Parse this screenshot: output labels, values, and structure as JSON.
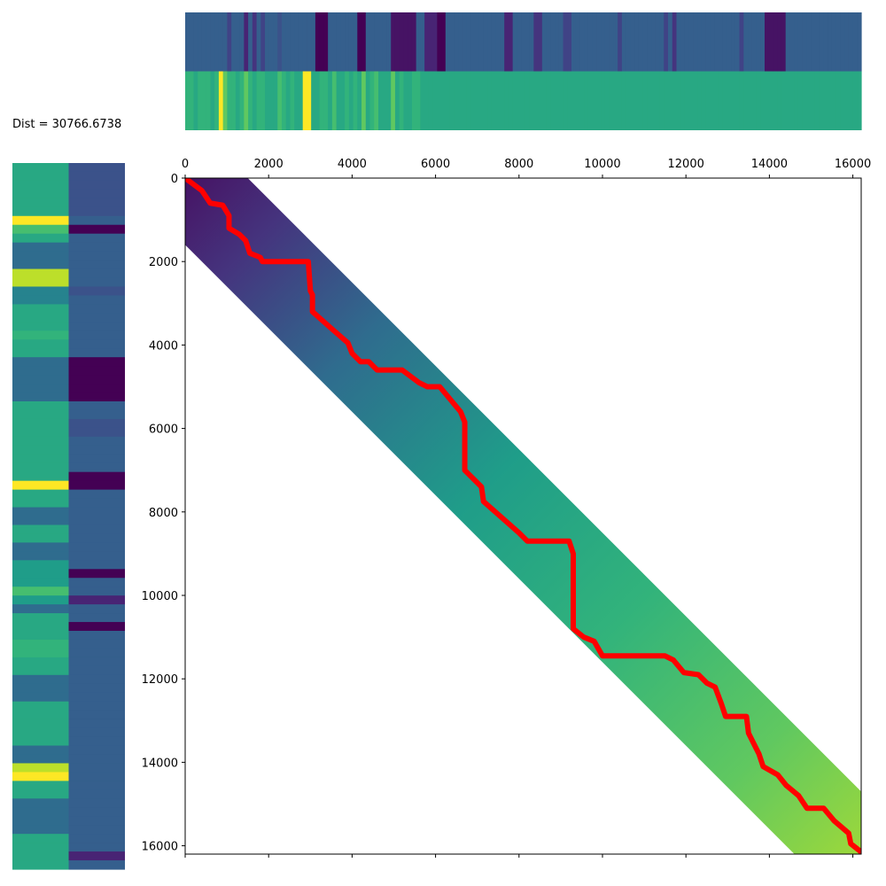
{
  "dist_label": "Dist = 30766.6738",
  "colors": {
    "path": "#ff0000",
    "cmap": [
      "#440154",
      "#482878",
      "#3e4a89",
      "#31688e",
      "#26828e",
      "#1f9e89",
      "#35b779",
      "#6ece58",
      "#b5de2b",
      "#fde725"
    ]
  },
  "chart_data": {
    "type": "heatmap",
    "title": "",
    "xlabel": "",
    "ylabel": "",
    "xlim": [
      0,
      16200
    ],
    "ylim": [
      16200,
      0
    ],
    "x_ticks": [
      0,
      2000,
      4000,
      6000,
      8000,
      10000,
      12000,
      14000,
      16000
    ],
    "y_ticks": [
      0,
      2000,
      4000,
      6000,
      8000,
      10000,
      12000,
      14000,
      16000
    ],
    "x_tick_labels": [
      "0",
      "2000",
      "4000",
      "6000",
      "8000",
      "10000",
      "12000",
      "14000",
      "16000"
    ],
    "y_tick_labels": [
      "0",
      "2000",
      "4000",
      "6000",
      "8000",
      "10000",
      "12000",
      "14000",
      "16000"
    ],
    "band": {
      "upper_offset": 1500,
      "lower_offset": 1600
    },
    "cost_gradient": [
      {
        "pos": 0.0,
        "value": 0.05
      },
      {
        "pos": 0.1,
        "value": 0.15
      },
      {
        "pos": 0.25,
        "value": 0.35
      },
      {
        "pos": 0.45,
        "value": 0.55
      },
      {
        "pos": 0.65,
        "value": 0.65
      },
      {
        "pos": 0.85,
        "value": 0.75
      },
      {
        "pos": 1.0,
        "value": 0.85
      }
    ],
    "warping_path": [
      [
        0,
        0
      ],
      [
        400,
        300
      ],
      [
        600,
        600
      ],
      [
        900,
        650
      ],
      [
        1050,
        900
      ],
      [
        1050,
        1200
      ],
      [
        1300,
        1350
      ],
      [
        1450,
        1500
      ],
      [
        1550,
        1800
      ],
      [
        1800,
        1900
      ],
      [
        1850,
        2000
      ],
      [
        2950,
        2000
      ],
      [
        3000,
        2700
      ],
      [
        3050,
        2800
      ],
      [
        3050,
        3200
      ],
      [
        3500,
        3600
      ],
      [
        3900,
        3950
      ],
      [
        4000,
        4200
      ],
      [
        4200,
        4400
      ],
      [
        4400,
        4400
      ],
      [
        4600,
        4600
      ],
      [
        5200,
        4600
      ],
      [
        5600,
        4900
      ],
      [
        5800,
        5000
      ],
      [
        6100,
        5000
      ],
      [
        6600,
        5600
      ],
      [
        6700,
        5850
      ],
      [
        6700,
        7000
      ],
      [
        7100,
        7400
      ],
      [
        7150,
        7750
      ],
      [
        8000,
        8500
      ],
      [
        8200,
        8700
      ],
      [
        9200,
        8700
      ],
      [
        9300,
        9000
      ],
      [
        9300,
        10800
      ],
      [
        9550,
        11000
      ],
      [
        9800,
        11100
      ],
      [
        10000,
        11450
      ],
      [
        11500,
        11450
      ],
      [
        11700,
        11550
      ],
      [
        11950,
        11850
      ],
      [
        12300,
        11900
      ],
      [
        12500,
        12100
      ],
      [
        12700,
        12200
      ],
      [
        12850,
        12600
      ],
      [
        12950,
        12900
      ],
      [
        13450,
        12900
      ],
      [
        13500,
        13300
      ],
      [
        13650,
        13600
      ],
      [
        13750,
        13800
      ],
      [
        13850,
        14100
      ],
      [
        14200,
        14300
      ],
      [
        14400,
        14550
      ],
      [
        14700,
        14800
      ],
      [
        14900,
        15100
      ],
      [
        15300,
        15100
      ],
      [
        15550,
        15400
      ],
      [
        15900,
        15700
      ],
      [
        15950,
        15950
      ],
      [
        16200,
        16150
      ]
    ],
    "top_sequences": [
      {
        "name": "",
        "values": [
          0.3,
          0.3,
          0.3,
          0.3,
          0.3,
          0.3,
          0.3,
          0.3,
          0.3,
          0.3,
          0.2,
          0.3,
          0.3,
          0.3,
          0.1,
          0.3,
          0.15,
          0.3,
          0.2,
          0.3,
          0.3,
          0.3,
          0.25,
          0.3,
          0.3,
          0.3,
          0.3,
          0.3,
          0.3,
          0.3,
          0.3,
          0.0,
          0.0,
          0.0,
          0.3,
          0.3,
          0.3,
          0.3,
          0.3,
          0.3,
          0.3,
          0.0,
          0.0,
          0.3,
          0.3,
          0.3,
          0.3,
          0.3,
          0.3,
          0.05,
          0.05,
          0.05,
          0.05,
          0.05,
          0.05,
          0.3,
          0.3,
          0.1,
          0.1,
          0.1,
          0.0,
          0.0,
          0.3,
          0.3,
          0.3,
          0.3,
          0.3,
          0.3,
          0.3,
          0.3,
          0.3,
          0.3,
          0.3,
          0.3,
          0.3,
          0.3,
          0.1,
          0.1,
          0.3,
          0.3,
          0.3,
          0.3,
          0.3,
          0.15,
          0.15,
          0.3,
          0.3,
          0.3,
          0.3,
          0.3,
          0.2,
          0.2,
          0.3,
          0.3,
          0.3,
          0.3,
          0.3,
          0.3,
          0.3,
          0.3,
          0.3,
          0.3,
          0.3,
          0.2,
          0.3,
          0.3,
          0.3,
          0.3,
          0.3,
          0.3,
          0.3,
          0.3,
          0.3,
          0.3,
          0.2,
          0.3,
          0.15,
          0.3,
          0.3,
          0.3,
          0.3,
          0.3,
          0.3,
          0.3,
          0.3,
          0.3,
          0.3,
          0.3,
          0.3,
          0.3,
          0.3,
          0.3,
          0.2,
          0.3,
          0.3,
          0.3,
          0.3,
          0.3,
          0.05,
          0.05,
          0.05,
          0.05,
          0.05,
          0.3,
          0.3,
          0.3,
          0.3,
          0.3,
          0.3,
          0.3,
          0.3,
          0.3,
          0.3,
          0.3,
          0.3,
          0.3,
          0.3,
          0.3,
          0.3,
          0.3,
          0.3
        ]
      },
      {
        "name": "",
        "values": [
          0.65,
          0.65,
          0.6,
          0.65,
          0.65,
          0.65,
          0.6,
          0.65,
          1.0,
          0.75,
          0.65,
          0.65,
          0.6,
          0.65,
          0.75,
          0.65,
          0.6,
          0.65,
          0.65,
          0.6,
          0.6,
          0.6,
          0.7,
          0.65,
          0.6,
          0.65,
          0.6,
          0.6,
          1.0,
          1.0,
          0.6,
          0.6,
          0.65,
          0.65,
          0.6,
          0.7,
          0.6,
          0.6,
          0.65,
          0.6,
          0.65,
          0.6,
          0.75,
          0.6,
          0.65,
          0.7,
          0.6,
          0.6,
          0.6,
          0.75,
          0.6,
          0.65,
          0.6,
          0.6,
          0.65,
          0.65,
          0.6,
          0.6,
          0.6,
          0.6,
          0.6,
          0.6,
          0.6,
          0.6,
          0.6,
          0.6,
          0.6,
          0.6,
          0.6,
          0.6,
          0.6,
          0.6,
          0.6,
          0.6,
          0.6,
          0.6,
          0.6,
          0.6,
          0.6,
          0.6,
          0.6,
          0.6,
          0.6,
          0.6,
          0.6,
          0.6,
          0.6,
          0.6,
          0.6,
          0.6,
          0.6,
          0.6,
          0.6,
          0.6,
          0.6,
          0.6,
          0.6,
          0.6,
          0.6,
          0.6,
          0.6,
          0.6,
          0.6,
          0.6,
          0.6,
          0.6,
          0.6,
          0.6,
          0.6,
          0.6,
          0.6,
          0.6,
          0.6,
          0.6,
          0.6,
          0.6,
          0.6,
          0.6,
          0.6,
          0.6,
          0.6,
          0.6,
          0.6,
          0.6,
          0.6,
          0.6,
          0.6,
          0.6,
          0.6,
          0.6,
          0.6,
          0.6,
          0.6,
          0.6,
          0.6,
          0.6,
          0.6,
          0.6,
          0.6,
          0.6,
          0.6,
          0.6,
          0.6,
          0.6,
          0.6,
          0.6,
          0.6,
          0.6,
          0.6,
          0.6,
          0.6,
          0.6,
          0.6,
          0.6,
          0.6,
          0.6,
          0.6,
          0.6,
          0.6,
          0.6,
          0.6
        ]
      }
    ],
    "left_sequences": [
      {
        "name": "",
        "values": [
          0.6,
          0.6,
          0.6,
          0.6,
          0.6,
          0.6,
          1.0,
          0.7,
          0.6,
          0.35,
          0.35,
          0.35,
          0.9,
          0.9,
          0.45,
          0.45,
          0.6,
          0.6,
          0.6,
          0.65,
          0.6,
          0.6,
          0.35,
          0.35,
          0.35,
          0.35,
          0.35,
          0.6,
          0.6,
          0.6,
          0.6,
          0.6,
          0.6,
          0.6,
          0.6,
          0.6,
          1.0,
          0.6,
          0.6,
          0.35,
          0.35,
          0.6,
          0.6,
          0.35,
          0.35,
          0.55,
          0.55,
          0.55,
          0.7,
          0.55,
          0.35,
          0.6,
          0.6,
          0.6,
          0.65,
          0.65,
          0.6,
          0.6,
          0.35,
          0.35,
          0.35,
          0.6,
          0.6,
          0.6,
          0.6,
          0.6,
          0.35,
          0.35,
          0.9,
          1.0,
          0.6,
          0.6,
          0.35,
          0.35,
          0.35,
          0.35,
          0.6,
          0.6,
          0.6,
          0.6
        ]
      },
      {
        "name": "",
        "values": [
          0.25,
          0.25,
          0.25,
          0.25,
          0.25,
          0.25,
          0.3,
          0.0,
          0.3,
          0.3,
          0.3,
          0.3,
          0.3,
          0.3,
          0.25,
          0.3,
          0.3,
          0.3,
          0.3,
          0.3,
          0.3,
          0.3,
          0.0,
          0.0,
          0.0,
          0.0,
          0.0,
          0.3,
          0.3,
          0.25,
          0.25,
          0.3,
          0.3,
          0.3,
          0.3,
          0.0,
          0.0,
          0.3,
          0.3,
          0.3,
          0.3,
          0.3,
          0.3,
          0.3,
          0.3,
          0.3,
          0.0,
          0.3,
          0.3,
          0.1,
          0.3,
          0.3,
          0.0,
          0.3,
          0.3,
          0.3,
          0.3,
          0.3,
          0.3,
          0.3,
          0.3,
          0.3,
          0.3,
          0.3,
          0.3,
          0.3,
          0.3,
          0.3,
          0.3,
          0.3,
          0.3,
          0.3,
          0.3,
          0.3,
          0.3,
          0.3,
          0.3,
          0.3,
          0.1,
          0.3
        ]
      }
    ]
  }
}
